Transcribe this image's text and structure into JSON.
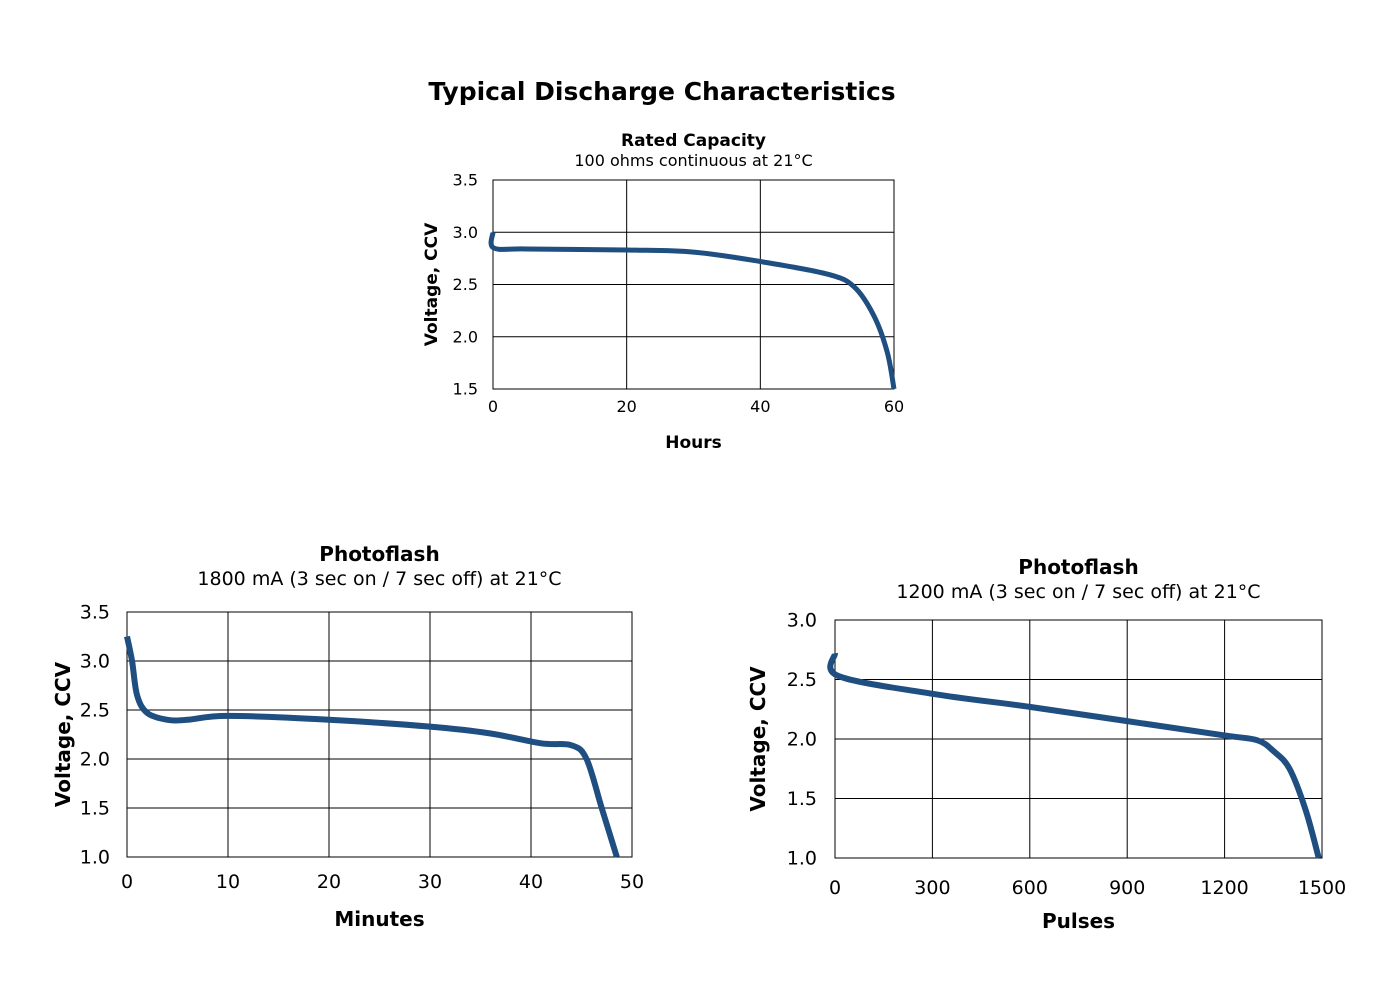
{
  "title": "Typical Discharge Characteristics",
  "line_color": "#1f4e80",
  "chart_data": [
    {
      "type": "line",
      "title": "Rated Capacity",
      "subtitle": "100 ohms continuous at 21°C",
      "xlabel": "Hours",
      "ylabel": "Voltage, CCV",
      "xlim": [
        0,
        60
      ],
      "ylim": [
        1.5,
        3.5
      ],
      "xticks": [
        "0",
        "20",
        "40",
        "60"
      ],
      "yticks": [
        "1.5",
        "2.0",
        "2.5",
        "3.0",
        "3.5"
      ],
      "grid": true,
      "x": [
        0,
        0.1,
        5,
        20,
        30,
        40,
        50,
        54,
        57,
        59,
        60
      ],
      "y": [
        3.0,
        2.85,
        2.84,
        2.83,
        2.81,
        2.72,
        2.6,
        2.48,
        2.2,
        1.85,
        1.5
      ]
    },
    {
      "type": "line",
      "title": "Photoflash",
      "subtitle": "1800 mA (3 sec on / 7 sec  off) at 21°C",
      "xlabel": "Minutes",
      "ylabel": "Voltage, CCV",
      "xlim": [
        0,
        50
      ],
      "ylim": [
        1.0,
        3.5
      ],
      "xticks": [
        "0",
        "10",
        "20",
        "30",
        "40",
        "50"
      ],
      "yticks": [
        "1.0",
        "1.5",
        "2.0",
        "2.5",
        "3.0",
        "3.5"
      ],
      "grid": true,
      "x": [
        0,
        0.5,
        1,
        2,
        4,
        6,
        10,
        20,
        30,
        36,
        41,
        44,
        45.5,
        47,
        48.5
      ],
      "y": [
        3.25,
        3.0,
        2.65,
        2.47,
        2.4,
        2.4,
        2.44,
        2.4,
        2.33,
        2.26,
        2.16,
        2.14,
        2.0,
        1.5,
        1.0
      ]
    },
    {
      "type": "line",
      "title": "Photoflash",
      "subtitle": "1200 mA (3 sec on / 7 sec  off) at 21°C",
      "xlabel": "Pulses",
      "ylabel": "Voltage, CCV",
      "xlim": [
        0,
        1500
      ],
      "ylim": [
        1.0,
        3.0
      ],
      "xticks": [
        "0",
        "300",
        "600",
        "900",
        "1200",
        "1500"
      ],
      "yticks": [
        "1.0",
        "1.5",
        "2.0",
        "2.5",
        "3.0"
      ],
      "grid": true,
      "x": [
        0,
        10,
        300,
        600,
        900,
        1200,
        1300,
        1350,
        1400,
        1450,
        1490
      ],
      "y": [
        2.72,
        2.53,
        2.38,
        2.27,
        2.15,
        2.03,
        1.99,
        1.9,
        1.75,
        1.4,
        1.0
      ]
    }
  ]
}
